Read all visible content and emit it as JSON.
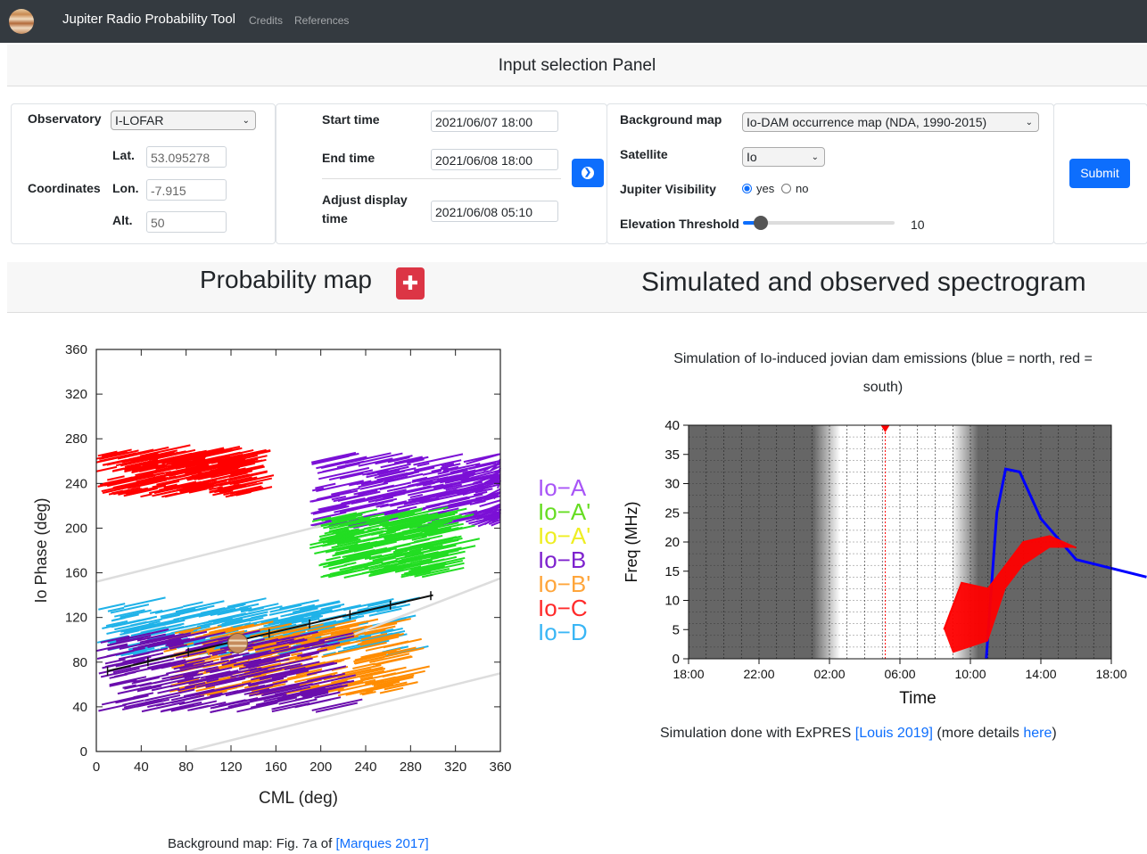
{
  "navbar": {
    "brand": "Jupiter Radio Probability Tool",
    "links": [
      "Credits",
      "References"
    ]
  },
  "input_panel": {
    "title": "Input selection Panel",
    "observatory_label": "Observatory",
    "observatory_value": "I-LOFAR",
    "coordinates_label": "Coordinates",
    "lat_label": "Lat.",
    "lat_value": "53.095278",
    "lon_label": "Lon.",
    "lon_value": "-7.915",
    "alt_label": "Alt.",
    "alt_value": "50",
    "start_time_label": "Start time",
    "start_time_value": "2021/06/07 18:00",
    "end_time_label": "End time",
    "end_time_value": "2021/06/08 18:00",
    "adjust_label_1": "Adjust display",
    "adjust_label_2": "time",
    "adjust_value": "2021/06/08 05:10",
    "background_map_label": "Background map",
    "background_map_value": "Io-DAM occurrence map (NDA, 1990-2015)",
    "satellite_label": "Satellite",
    "satellite_value": "Io",
    "visibility_label": "Jupiter Visibility",
    "visibility_yes": "yes",
    "visibility_no": "no",
    "elevation_label": "Elevation Threshold",
    "elevation_value": "10",
    "elevation_fraction": 0.12,
    "submit_label": "Submit"
  },
  "probability_map": {
    "title": "Probability map",
    "caption_prefix": "Background map: Fig. 7a of ",
    "caption_link": "[Marques 2017]"
  },
  "spectrogram": {
    "title": "Simulated and observed spectrogram",
    "subtitle_line1": "Simulation of Io-induced jovian dam emissions (blue = north, red =",
    "subtitle_line2": "south)",
    "caption_prefix": "Simulation done with ExPRES ",
    "caption_link1": "[Louis 2019]",
    "caption_mid": " (more details ",
    "caption_link2": "here",
    "caption_suffix": ")"
  },
  "colors": {
    "io_a": "#8b2fd6",
    "io_a1": "#22dd22",
    "io_a2": "#ffff00",
    "io_b": "#6a0dad",
    "io_b1": "#ff8c00",
    "io_c": "#ff0000",
    "io_d": "#1fb2e8",
    "accent": "#0d6efd"
  },
  "chart_data": [
    {
      "type": "scatter",
      "xlabel": "CML (deg)",
      "ylabel": "Io Phase (deg)",
      "xlim": [
        0,
        360
      ],
      "ylim": [
        0,
        360
      ],
      "xticks": [
        "0",
        "40",
        "80",
        "120",
        "160",
        "200",
        "240",
        "280",
        "320",
        "360"
      ],
      "yticks": [
        "0",
        "40",
        "80",
        "120",
        "160",
        "200",
        "240",
        "280",
        "320",
        "360"
      ],
      "legend": [
        "Io−A",
        "Io−A'",
        "Io−A'",
        "Io−B",
        "Io−B'",
        "Io−C",
        "Io−D"
      ],
      "legend_colors": [
        "#a855f7",
        "#66dd22",
        "#eeee22",
        "#7e22ce",
        "#ffa53a",
        "#ff2a2a",
        "#3ab6f5"
      ],
      "regions": [
        {
          "name": "Io-C",
          "color": "#ff0000",
          "cml": [
            0,
            125
          ],
          "phase": [
            228,
            265
          ]
        },
        {
          "name": "Io-A",
          "color": "#7b10d6",
          "cml": [
            190,
            360
          ],
          "phase": [
            200,
            260
          ]
        },
        {
          "name": "Io-A'",
          "color": "#22dd22",
          "cml": [
            190,
            300
          ],
          "phase": [
            155,
            210
          ]
        },
        {
          "name": "Io-D",
          "color": "#1fb2e8",
          "cml": [
            0,
            260
          ],
          "phase": [
            85,
            130
          ]
        },
        {
          "name": "Io-B'",
          "color": "#ff8c00",
          "cml": [
            60,
            260
          ],
          "phase": [
            50,
            110
          ]
        },
        {
          "name": "Io-B",
          "color": "#6a0dad",
          "cml": [
            0,
            200
          ],
          "phase": [
            35,
            100
          ]
        }
      ],
      "track_current": {
        "cml": [
          10,
          300
        ],
        "phase": [
          72,
          140
        ]
      },
      "jupiter_marker": {
        "cml": 126,
        "phase": 97
      }
    },
    {
      "type": "line",
      "xlabel": "Time",
      "ylabel": "Freq (MHz)",
      "xticks": [
        "18:00",
        "22:00",
        "02:00",
        "06:00",
        "10:00",
        "14:00",
        "18:00"
      ],
      "yticks": [
        "0",
        "5",
        "10",
        "15",
        "20",
        "25",
        "30",
        "35",
        "40"
      ],
      "ylim": [
        0,
        40
      ],
      "current_time": "05:10",
      "series": [
        {
          "name": "north",
          "color": "#0000ff",
          "x_hours": [
            34.9,
            35.5,
            36,
            36.8,
            38,
            40,
            44
          ],
          "y": [
            0,
            25,
            32.5,
            32,
            24,
            17,
            14
          ]
        },
        {
          "name": "south",
          "color": "#ff0000",
          "x_hours": [
            32.5,
            33.5,
            35,
            36,
            37,
            38.5,
            40
          ],
          "y": [
            5,
            13,
            12,
            16,
            20,
            21,
            19
          ]
        }
      ]
    }
  ]
}
